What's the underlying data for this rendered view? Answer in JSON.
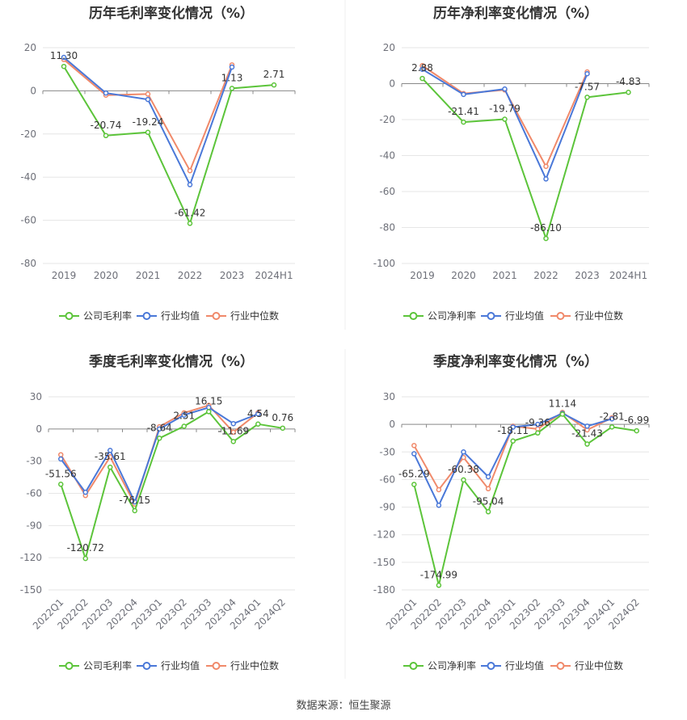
{
  "colors": {
    "company": "#5cc43a",
    "avg": "#4a78d8",
    "median": "#f0896a",
    "grid": "#e6e6e6",
    "axis": "#888888",
    "text": "#333333",
    "tick": "#6e7079"
  },
  "source_text": "数据来源：恒生聚源",
  "chart_data": [
    {
      "type": "line",
      "title": "历年毛利率变化情况（%）",
      "categories": [
        "2019",
        "2020",
        "2021",
        "2022",
        "2023",
        "2024H1"
      ],
      "ylim": [
        -80,
        20
      ],
      "yticks": [
        20,
        0,
        -20,
        -40,
        -60,
        -80
      ],
      "rotate_x": false,
      "legend": "bottom",
      "series": [
        {
          "name": "公司毛利率",
          "values": [
            11.3,
            -20.74,
            -19.24,
            -61.42,
            1.13,
            2.71
          ],
          "labels": [
            "11.30",
            "-20.74",
            "-19.24",
            "-61.42",
            "1.13",
            "2.71"
          ]
        },
        {
          "name": "行业均值",
          "values": [
            15.5,
            -1.0,
            -4.0,
            -43.5,
            11.0,
            null
          ]
        },
        {
          "name": "行业中位数",
          "values": [
            14.5,
            -2.0,
            -1.5,
            -37.0,
            12.0,
            null
          ]
        }
      ]
    },
    {
      "type": "line",
      "title": "历年净利率变化情况（%）",
      "categories": [
        "2019",
        "2020",
        "2021",
        "2022",
        "2023",
        "2024H1"
      ],
      "ylim": [
        -100,
        20
      ],
      "yticks": [
        20,
        0,
        -20,
        -40,
        -60,
        -80,
        -100
      ],
      "rotate_x": false,
      "legend": "bottom",
      "series": [
        {
          "name": "公司净利率",
          "values": [
            2.88,
            -21.41,
            -19.79,
            -86.1,
            -7.57,
            -4.83
          ],
          "labels": [
            "2.88",
            "-21.41",
            "-19.79",
            "-86.10",
            "-7.57",
            "-4.83"
          ]
        },
        {
          "name": "行业均值",
          "values": [
            8.0,
            -6.0,
            -3.0,
            -53.0,
            5.5,
            null
          ]
        },
        {
          "name": "行业中位数",
          "values": [
            10.0,
            -5.5,
            -3.5,
            -46.0,
            6.5,
            null
          ]
        }
      ]
    },
    {
      "type": "line",
      "title": "季度毛利率变化情况（%）",
      "categories": [
        "2022Q1",
        "2022Q2",
        "2022Q3",
        "2022Q4",
        "2023Q1",
        "2023Q2",
        "2023Q3",
        "2023Q4",
        "2024Q1",
        "2024Q2"
      ],
      "ylim": [
        -150,
        30
      ],
      "yticks": [
        30,
        0,
        -30,
        -60,
        -90,
        -120,
        -150
      ],
      "rotate_x": true,
      "legend": "bottom",
      "series": [
        {
          "name": "公司毛利率",
          "values": [
            -51.56,
            -120.72,
            -35.61,
            -76.15,
            -8.64,
            2.51,
            16.15,
            -11.69,
            4.54,
            0.76
          ],
          "labels": [
            "-51.56",
            "-120.72",
            "-35.61",
            "-76.15",
            "-8.64",
            "2.51",
            "16.15",
            "-11.69",
            "4.54",
            "0.76"
          ]
        },
        {
          "name": "行业均值",
          "values": [
            -28.0,
            -59.0,
            -20.0,
            -68.0,
            0.0,
            13.0,
            20.0,
            5.0,
            14.0,
            null
          ]
        },
        {
          "name": "行业中位数",
          "values": [
            -24.0,
            -62.0,
            -26.0,
            -70.0,
            2.0,
            15.0,
            22.0,
            -3.0,
            15.0,
            null
          ]
        }
      ]
    },
    {
      "type": "line",
      "title": "季度净利率变化情况（%）",
      "categories": [
        "2022Q1",
        "2022Q2",
        "2022Q3",
        "2022Q4",
        "2023Q1",
        "2023Q2",
        "2023Q3",
        "2023Q4",
        "2024Q1",
        "2024Q2"
      ],
      "ylim": [
        -180,
        30
      ],
      "yticks": [
        30,
        0,
        -30,
        -60,
        -90,
        -120,
        -150,
        -180
      ],
      "rotate_x": true,
      "legend": "bottom",
      "series": [
        {
          "name": "公司净利率",
          "values": [
            -65.29,
            -174.99,
            -60.38,
            -95.04,
            -18.11,
            -9.36,
            11.14,
            -21.43,
            -2.81,
            -6.99
          ],
          "labels": [
            "-65.29",
            "-174.99",
            "-60.38",
            "-95.04",
            "-18.11",
            "-9.36",
            "11.14",
            "-21.43",
            "-2.81",
            "-6.99"
          ]
        },
        {
          "name": "行业均值",
          "values": [
            -32.0,
            -88.0,
            -30.0,
            -57.0,
            -3.0,
            0.0,
            12.0,
            -2.0,
            6.0,
            null
          ]
        },
        {
          "name": "行业中位数",
          "values": [
            -23.0,
            -71.0,
            -36.0,
            -70.0,
            -2.0,
            -5.0,
            13.0,
            -6.0,
            7.0,
            null
          ]
        }
      ]
    }
  ]
}
